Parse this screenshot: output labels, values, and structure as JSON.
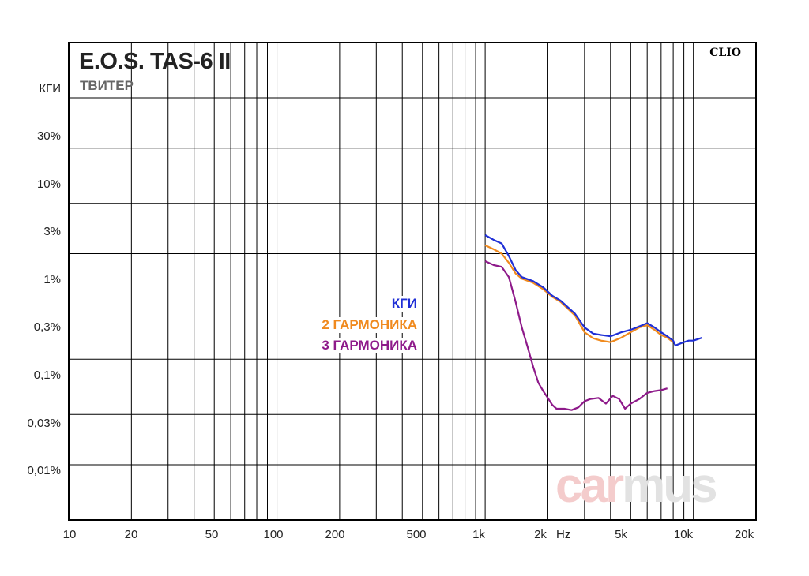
{
  "header": {
    "title": "E.O.S. TAS-6 II",
    "subtitle": "ТВИТЕР",
    "brand": "CLIO",
    "watermark_a": "car",
    "watermark_b": "mus"
  },
  "colors": {
    "thd": "#1f2fd6",
    "h2": "#f08a1e",
    "h3": "#8e1a8a",
    "grid": "#000000"
  },
  "chart_data": {
    "type": "line",
    "title": "E.O.S. TAS-6 II",
    "subtitle": "ТВИТЕР",
    "x_scale": "log",
    "y_scale": "log",
    "xlim": [
      10,
      20000
    ],
    "ylim": [
      0.003,
      100
    ],
    "xlabel": "Hz",
    "ylabel": "КГИ",
    "grid": true,
    "x_ticks": [
      {
        "value": 10,
        "label": "10"
      },
      {
        "value": 20,
        "label": "20"
      },
      {
        "value": 50,
        "label": "50"
      },
      {
        "value": 100,
        "label": "100"
      },
      {
        "value": 200,
        "label": "200"
      },
      {
        "value": 500,
        "label": "500"
      },
      {
        "value": 1000,
        "label": "1k"
      },
      {
        "value": 2000,
        "label": "2k"
      },
      {
        "value": 5000,
        "label": "5k"
      },
      {
        "value": 10000,
        "label": "10k"
      },
      {
        "value": 20000,
        "label": "20k"
      }
    ],
    "y_ticks": [
      {
        "value": 30,
        "label": "30%"
      },
      {
        "value": 10,
        "label": "10%"
      },
      {
        "value": 3,
        "label": "3%"
      },
      {
        "value": 1,
        "label": "1%"
      },
      {
        "value": 0.3,
        "label": "0,3%"
      },
      {
        "value": 0.1,
        "label": "0,1%"
      },
      {
        "value": 0.03,
        "label": "0,03%"
      },
      {
        "value": 0.01,
        "label": "0,01%"
      }
    ],
    "series": [
      {
        "name": "КГИ",
        "color": "#1f2fd6",
        "x": [
          1000,
          1100,
          1200,
          1300,
          1400,
          1500,
          1700,
          1900,
          2100,
          2300,
          2500,
          2700,
          3000,
          3300,
          3600,
          4000,
          4500,
          5000,
          5500,
          6000,
          6500,
          7000,
          7500,
          8000,
          8200,
          8600,
          9000,
          9500,
          10000,
          10500,
          11000
        ],
        "y": [
          1.5,
          1.35,
          1.25,
          0.95,
          0.7,
          0.6,
          0.55,
          0.48,
          0.4,
          0.36,
          0.31,
          0.27,
          0.2,
          0.175,
          0.17,
          0.165,
          0.18,
          0.19,
          0.205,
          0.22,
          0.2,
          0.18,
          0.165,
          0.15,
          0.135,
          0.14,
          0.145,
          0.15,
          0.15,
          0.155,
          0.16
        ]
      },
      {
        "name": "2 ГАРМОНИКА",
        "color": "#f08a1e",
        "x": [
          1000,
          1100,
          1200,
          1300,
          1400,
          1500,
          1700,
          1900,
          2100,
          2300,
          2500,
          2700,
          3000,
          3300,
          3600,
          4000,
          4500,
          5000,
          5500,
          6000,
          6500,
          7000,
          7500,
          8000
        ],
        "y": [
          1.2,
          1.1,
          1.0,
          0.82,
          0.65,
          0.58,
          0.53,
          0.46,
          0.39,
          0.35,
          0.3,
          0.26,
          0.18,
          0.158,
          0.15,
          0.145,
          0.16,
          0.18,
          0.2,
          0.21,
          0.19,
          0.17,
          0.16,
          0.145
        ]
      },
      {
        "name": "3 ГАРМОНИКА",
        "color": "#8e1a8a",
        "x": [
          1000,
          1100,
          1200,
          1300,
          1400,
          1500,
          1600,
          1700,
          1800,
          1900,
          2000,
          2100,
          2200,
          2400,
          2600,
          2800,
          3000,
          3200,
          3500,
          3800,
          4100,
          4400,
          4700,
          5000,
          5500,
          6000,
          6500,
          7000,
          7500
        ],
        "y": [
          0.85,
          0.78,
          0.75,
          0.6,
          0.35,
          0.2,
          0.13,
          0.085,
          0.06,
          0.05,
          0.043,
          0.037,
          0.034,
          0.034,
          0.033,
          0.035,
          0.04,
          0.042,
          0.043,
          0.038,
          0.045,
          0.042,
          0.034,
          0.038,
          0.042,
          0.048,
          0.05,
          0.051,
          0.053
        ]
      }
    ]
  }
}
